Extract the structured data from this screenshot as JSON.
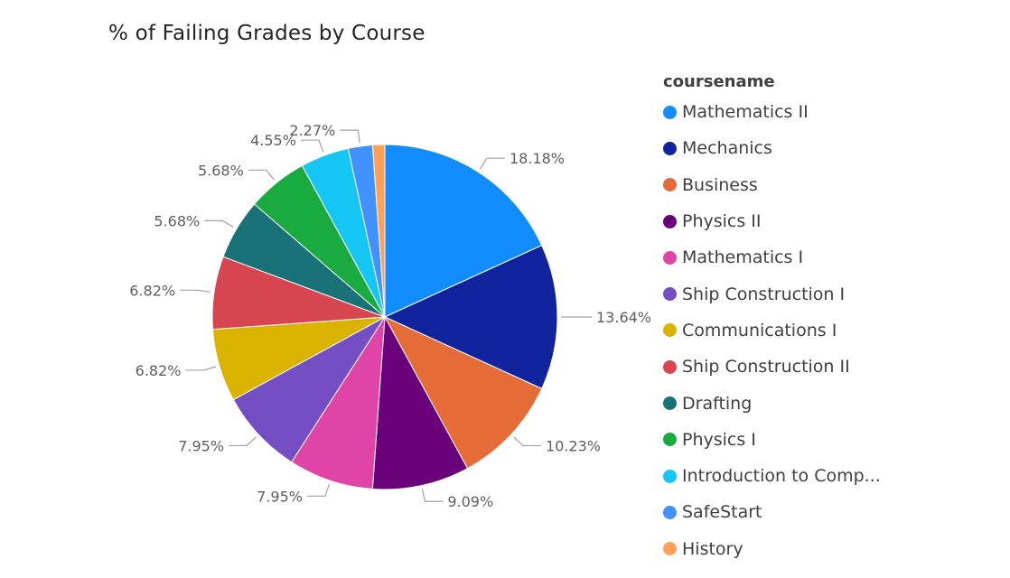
{
  "chart_data": {
    "type": "pie",
    "title": "% of Failing Grades by Course",
    "legend_title": "coursename",
    "legend_position": "right",
    "categories": [
      "Mathematics II",
      "Mechanics",
      "Business",
      "Physics II",
      "Mathematics I",
      "Ship Construction I",
      "Communications I",
      "Ship Construction II",
      "Drafting",
      "Physics I",
      "Introduction to Comp...",
      "SafeStart",
      "History"
    ],
    "values": [
      18.18,
      13.64,
      10.23,
      9.09,
      7.95,
      7.95,
      6.82,
      6.82,
      5.68,
      5.68,
      4.55,
      2.27,
      1.14
    ],
    "labels": [
      "18.18%",
      "13.64%",
      "10.23%",
      "9.09%",
      "7.95%",
      "7.95%",
      "6.82%",
      "6.82%",
      "5.68%",
      "5.68%",
      "4.55%",
      "2.27%",
      ""
    ],
    "colors": [
      "#118DFF",
      "#12239E",
      "#E66C37",
      "#6B007B",
      "#E044A7",
      "#744EC2",
      "#D9B300",
      "#D64550",
      "#197278",
      "#1AAB40",
      "#15C6F4",
      "#4092FF",
      "#FFA058"
    ]
  }
}
